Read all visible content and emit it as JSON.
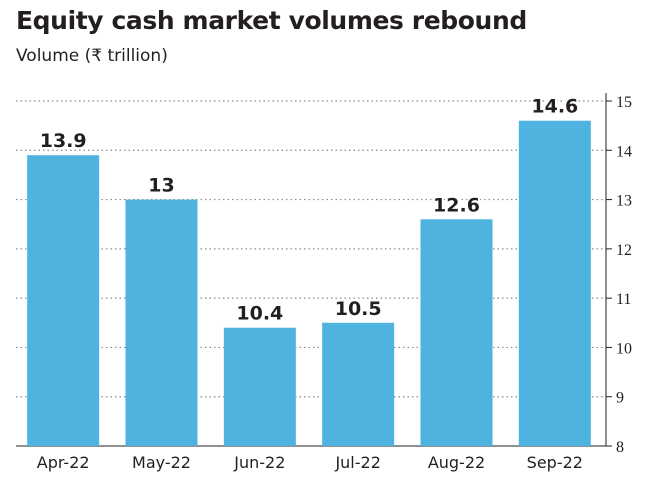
{
  "chart_data": {
    "type": "bar",
    "title": "Equity cash market volumes rebound",
    "ylabel": "Volume (₹ trillion)",
    "xlabel": "",
    "categories": [
      "Apr-22",
      "May-22",
      "Jun-22",
      "Jul-22",
      "Aug-22",
      "Sep-22"
    ],
    "values": [
      13.9,
      13,
      10.4,
      10.5,
      12.6,
      14.6
    ],
    "value_labels": [
      "13.9",
      "13",
      "10.4",
      "10.5",
      "12.6",
      "14.6"
    ],
    "ylim": [
      8,
      15
    ],
    "yticks": [
      8,
      9,
      10,
      11,
      12,
      13,
      14,
      15
    ],
    "y_axis_position": "right",
    "grid": "horizontal dotted",
    "bar_color": "#4fb3e0"
  }
}
